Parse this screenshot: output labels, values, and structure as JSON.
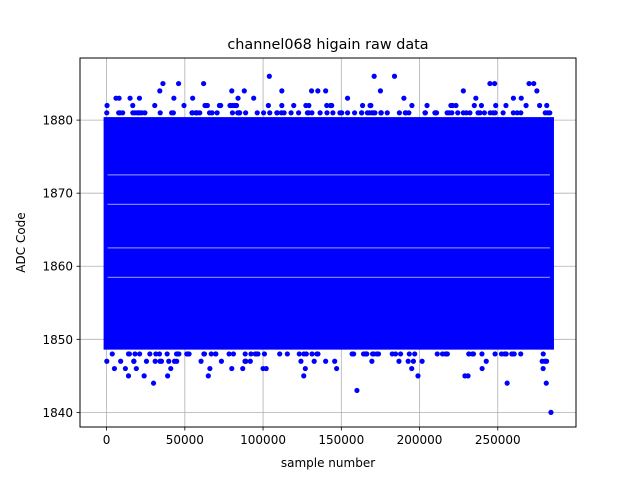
{
  "chart_data": {
    "type": "scatter",
    "title": "channel068 higain raw data",
    "xlabel": "sample number",
    "ylabel": "ADC Code",
    "xlim": [
      -17000,
      300000
    ],
    "ylim": [
      1838,
      1888.5
    ],
    "xticks": [
      0,
      50000,
      100000,
      150000,
      200000,
      250000
    ],
    "xtick_labels": [
      "0",
      "50000",
      "100000",
      "150000",
      "200000",
      "250000"
    ],
    "yticks": [
      1840,
      1850,
      1860,
      1870,
      1880
    ],
    "ytick_labels": [
      "1840",
      "1850",
      "1860",
      "1870",
      "1880"
    ],
    "grid": true,
    "marker_color": "#0000ff",
    "x_range": [
      0,
      284000
    ],
    "dense_band": {
      "x": [
        0,
        284000
      ],
      "y": [
        1849,
        1880
      ]
    },
    "outliers": [
      [
        104000,
        1886
      ],
      [
        171000,
        1886
      ],
      [
        184000,
        1886
      ],
      [
        36000,
        1885
      ],
      [
        46000,
        1885
      ],
      [
        62000,
        1885
      ],
      [
        245000,
        1885
      ],
      [
        248000,
        1885
      ],
      [
        270000,
        1885
      ],
      [
        273000,
        1885
      ],
      [
        34000,
        1884
      ],
      [
        80000,
        1884
      ],
      [
        88000,
        1884
      ],
      [
        112000,
        1884
      ],
      [
        131000,
        1884
      ],
      [
        135000,
        1884
      ],
      [
        140000,
        1884
      ],
      [
        175000,
        1884
      ],
      [
        228000,
        1884
      ],
      [
        275000,
        1884
      ],
      [
        6000,
        1883
      ],
      [
        8000,
        1883
      ],
      [
        15000,
        1883
      ],
      [
        21000,
        1883
      ],
      [
        43000,
        1883
      ],
      [
        55000,
        1883
      ],
      [
        84000,
        1883
      ],
      [
        94000,
        1883
      ],
      [
        154000,
        1883
      ],
      [
        190000,
        1883
      ],
      [
        236000,
        1883
      ],
      [
        260000,
        1883
      ],
      [
        265000,
        1883
      ],
      [
        5000,
        1846
      ],
      [
        12000,
        1846
      ],
      [
        19000,
        1846
      ],
      [
        41000,
        1846
      ],
      [
        66000,
        1846
      ],
      [
        80000,
        1846
      ],
      [
        87000,
        1846
      ],
      [
        100000,
        1846
      ],
      [
        102000,
        1846
      ],
      [
        127000,
        1846
      ],
      [
        147000,
        1846
      ],
      [
        195000,
        1846
      ],
      [
        240000,
        1846
      ],
      [
        279000,
        1846
      ],
      [
        14000,
        1845
      ],
      [
        24000,
        1845
      ],
      [
        39000,
        1845
      ],
      [
        65000,
        1845
      ],
      [
        126000,
        1845
      ],
      [
        199000,
        1845
      ],
      [
        229000,
        1845
      ],
      [
        231000,
        1845
      ],
      [
        30000,
        1844
      ],
      [
        256000,
        1844
      ],
      [
        281000,
        1844
      ],
      [
        160000,
        1843
      ],
      [
        284000,
        1840
      ]
    ]
  }
}
